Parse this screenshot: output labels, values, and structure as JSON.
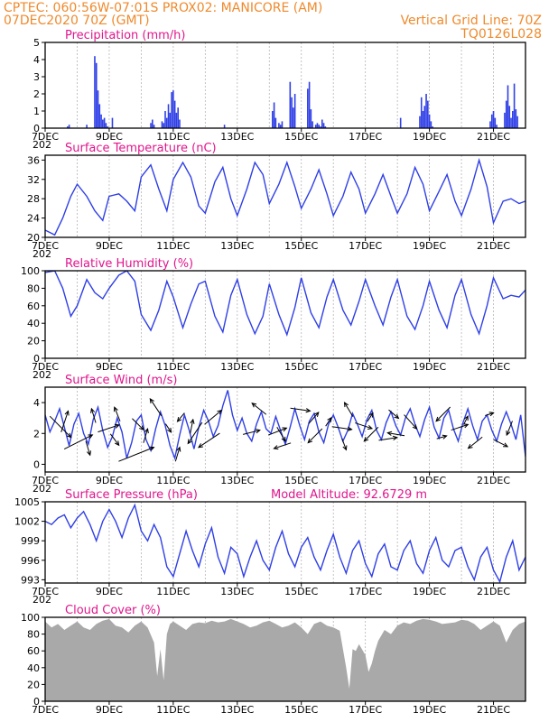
{
  "header": {
    "line1_left": "CPTEC:   060:56W-07:01S   PROX02: MANICORE (AM)",
    "line2_left": "07DEC2020 70Z (GMT)",
    "line2_right": "Vertical Grid Line: 70Z",
    "line3_right": "TQ0126L028"
  },
  "colors": {
    "header": "#ef8a2c",
    "panel_title": "#e0168c",
    "series": "#2f3fe6",
    "cloud": "#a9a9a9"
  },
  "x_axis": {
    "labels": [
      "7DEC",
      "9DEC",
      "11DEC",
      "13DEC",
      "15DEC",
      "17DEC",
      "19DEC",
      "21DEC"
    ],
    "start_day": 7,
    "end_day": 22,
    "label_step_days": 2,
    "year_fragment": "202"
  },
  "chart_data": [
    {
      "id": "precip",
      "type": "bar",
      "title": "Precipitation (mm/h)",
      "ylim": [
        0,
        5
      ],
      "yticks": [
        0,
        1,
        2,
        3,
        4,
        5
      ],
      "grid": true,
      "color": "#2f3fe6",
      "x": [
        7.7,
        7.75,
        8.3,
        8.55,
        8.6,
        8.65,
        8.7,
        8.75,
        8.8,
        8.85,
        8.9,
        8.95,
        9.1,
        10.3,
        10.35,
        10.4,
        10.65,
        10.7,
        10.75,
        10.8,
        10.85,
        10.9,
        10.95,
        11.0,
        11.05,
        11.1,
        11.15,
        11.2,
        12.6,
        14.1,
        14.15,
        14.2,
        14.3,
        14.35,
        14.4,
        14.65,
        14.7,
        14.75,
        14.8,
        15.2,
        15.25,
        15.3,
        15.35,
        15.45,
        15.5,
        15.55,
        15.6,
        15.65,
        15.7,
        15.75,
        18.1,
        18.7,
        18.75,
        18.8,
        18.85,
        18.9,
        18.95,
        19.0,
        19.05,
        19.1,
        20.9,
        20.95,
        21.0,
        21.05,
        21.1,
        21.35,
        21.4,
        21.45,
        21.5,
        21.55,
        21.6,
        21.65,
        21.7,
        21.75
      ],
      "values": [
        0.1,
        0.2,
        0.2,
        4.2,
        3.8,
        2.2,
        1.4,
        0.8,
        0.5,
        0.6,
        0.3,
        0.1,
        0.6,
        0.3,
        0.5,
        0.2,
        0.4,
        0.3,
        1.0,
        0.6,
        1.4,
        0.9,
        2.1,
        2.2,
        1.6,
        0.9,
        1.2,
        0.5,
        0.2,
        1.0,
        1.5,
        0.6,
        0.3,
        0.2,
        0.4,
        2.7,
        1.8,
        1.2,
        2.0,
        2.3,
        2.7,
        1.1,
        0.4,
        0.2,
        0.3,
        0.2,
        0.1,
        0.5,
        0.3,
        0.1,
        0.6,
        0.7,
        1.8,
        1.0,
        1.3,
        2.0,
        1.6,
        0.8,
        0.4,
        0.1,
        0.4,
        0.8,
        1.0,
        0.6,
        0.2,
        0.9,
        1.6,
        2.5,
        1.3,
        0.6,
        1.0,
        2.6,
        1.1,
        0.7
      ]
    },
    {
      "id": "temp",
      "type": "line",
      "title": "Surface Temperature (nC)",
      "ylim": [
        20,
        37
      ],
      "yticks": [
        20,
        24,
        28,
        32,
        36
      ],
      "grid": true,
      "color": "#2f3fe6",
      "x": [
        7.0,
        7.3,
        7.55,
        7.8,
        8.0,
        8.3,
        8.55,
        8.8,
        9.0,
        9.3,
        9.55,
        9.8,
        10.0,
        10.3,
        10.55,
        10.8,
        11.0,
        11.3,
        11.55,
        11.8,
        12.0,
        12.3,
        12.55,
        12.8,
        13.0,
        13.3,
        13.55,
        13.8,
        14.0,
        14.3,
        14.55,
        14.8,
        15.0,
        15.3,
        15.55,
        15.8,
        16.0,
        16.3,
        16.55,
        16.8,
        17.0,
        17.3,
        17.55,
        17.8,
        18.0,
        18.3,
        18.55,
        18.8,
        19.0,
        19.3,
        19.55,
        19.8,
        20.0,
        20.3,
        20.55,
        20.8,
        21.0,
        21.3,
        21.55,
        21.8,
        22.0
      ],
      "values": [
        21.5,
        20.5,
        24.0,
        28.5,
        31.0,
        28.5,
        25.5,
        23.5,
        28.5,
        29.0,
        27.5,
        25.5,
        32.5,
        35.0,
        30.0,
        25.5,
        32.0,
        35.5,
        32.5,
        26.5,
        25.0,
        31.5,
        34.5,
        28.0,
        24.5,
        30.0,
        35.5,
        33.0,
        27.0,
        31.0,
        35.5,
        30.5,
        26.0,
        30.0,
        34.0,
        29.0,
        24.5,
        28.5,
        33.5,
        30.0,
        25.0,
        29.0,
        33.0,
        28.5,
        25.0,
        29.0,
        34.5,
        31.0,
        25.5,
        29.5,
        33.0,
        27.5,
        24.5,
        30.0,
        36.0,
        30.5,
        23.0,
        27.5,
        28.0,
        27.0,
        27.5
      ]
    },
    {
      "id": "rh",
      "type": "line",
      "title": "Relative Humidity (%)",
      "ylim": [
        0,
        100
      ],
      "yticks": [
        0,
        20,
        40,
        60,
        80,
        100
      ],
      "grid": true,
      "color": "#2f3fe6",
      "x": [
        7.0,
        7.3,
        7.55,
        7.8,
        8.0,
        8.3,
        8.55,
        8.8,
        9.0,
        9.3,
        9.55,
        9.8,
        10.0,
        10.3,
        10.55,
        10.8,
        11.0,
        11.3,
        11.55,
        11.8,
        12.0,
        12.3,
        12.55,
        12.8,
        13.0,
        13.3,
        13.55,
        13.8,
        14.0,
        14.3,
        14.55,
        14.8,
        15.0,
        15.3,
        15.55,
        15.8,
        16.0,
        16.3,
        16.55,
        16.8,
        17.0,
        17.3,
        17.55,
        17.8,
        18.0,
        18.3,
        18.55,
        18.8,
        19.0,
        19.3,
        19.55,
        19.8,
        20.0,
        20.3,
        20.55,
        20.8,
        21.0,
        21.3,
        21.55,
        21.8,
        22.0
      ],
      "values": [
        98,
        100,
        80,
        48,
        60,
        90,
        75,
        68,
        80,
        95,
        100,
        88,
        50,
        32,
        55,
        88,
        70,
        35,
        62,
        85,
        88,
        48,
        30,
        72,
        90,
        50,
        28,
        48,
        85,
        50,
        27,
        58,
        92,
        52,
        35,
        70,
        90,
        55,
        38,
        65,
        90,
        60,
        38,
        70,
        90,
        48,
        33,
        60,
        88,
        55,
        35,
        72,
        90,
        50,
        28,
        60,
        92,
        68,
        72,
        70,
        78
      ]
    },
    {
      "id": "wind",
      "type": "line",
      "title": "Surface Wind (m/s)",
      "ylim": [
        -0.5,
        5
      ],
      "yticks": [
        0,
        2,
        4
      ],
      "grid": true,
      "color": "#2f3fe6",
      "x": [
        7.0,
        7.15,
        7.3,
        7.45,
        7.6,
        7.75,
        7.9,
        8.05,
        8.2,
        8.35,
        8.5,
        8.65,
        8.8,
        8.95,
        9.1,
        9.25,
        9.4,
        9.55,
        9.7,
        9.85,
        10.0,
        10.15,
        10.3,
        10.45,
        10.6,
        10.75,
        10.9,
        11.05,
        11.2,
        11.35,
        11.5,
        11.65,
        11.8,
        11.95,
        12.1,
        12.25,
        12.4,
        12.55,
        12.7,
        12.85,
        13.0,
        13.15,
        13.3,
        13.45,
        13.6,
        13.75,
        13.9,
        14.05,
        14.2,
        14.35,
        14.5,
        14.65,
        14.8,
        14.95,
        15.1,
        15.25,
        15.4,
        15.55,
        15.7,
        15.85,
        16.0,
        16.15,
        16.3,
        16.45,
        16.6,
        16.75,
        16.9,
        17.05,
        17.2,
        17.35,
        17.5,
        17.65,
        17.8,
        17.95,
        18.1,
        18.25,
        18.4,
        18.55,
        18.7,
        18.85,
        19.0,
        19.15,
        19.3,
        19.45,
        19.6,
        19.75,
        19.9,
        20.05,
        20.2,
        20.35,
        20.5,
        20.65,
        20.8,
        20.95,
        21.1,
        21.25,
        21.4,
        21.55,
        21.7,
        21.85,
        22.0
      ],
      "values": [
        3.2,
        2.1,
        2.8,
        3.6,
        2.4,
        1.2,
        2.6,
        3.3,
        2.0,
        1.3,
        2.9,
        3.7,
        2.2,
        1.1,
        1.8,
        3.0,
        2.1,
        0.4,
        1.4,
        2.8,
        3.2,
        1.6,
        0.9,
        2.3,
        3.4,
        2.5,
        1.2,
        0.4,
        1.9,
        3.2,
        2.2,
        1.0,
        2.4,
        3.5,
        2.8,
        1.8,
        2.5,
        3.8,
        4.8,
        3.2,
        2.2,
        3.0,
        2.0,
        1.5,
        2.6,
        3.4,
        2.3,
        2.0,
        3.1,
        2.2,
        1.3,
        2.4,
        3.6,
        2.5,
        1.6,
        2.8,
        3.3,
        2.1,
        1.4,
        2.6,
        3.2,
        2.4,
        1.5,
        2.2,
        3.3,
        2.6,
        1.8,
        2.9,
        3.5,
        2.2,
        1.6,
        2.7,
        3.4,
        2.5,
        1.9,
        3.0,
        3.6,
        2.6,
        1.8,
        2.9,
        3.7,
        2.4,
        1.7,
        3.0,
        3.5,
        2.3,
        1.5,
        2.7,
        3.6,
        2.5,
        1.6,
        2.8,
        3.2,
        2.2,
        1.5,
        2.6,
        3.4,
        2.6,
        1.6,
        3.2,
        0.5
      ]
    },
    {
      "id": "pressure",
      "type": "line",
      "title": "Surface Pressure (hPa)",
      "annotation": "Model Altitude: 92.6729 m",
      "ylim": [
        992.5,
        1005
      ],
      "yticks": [
        993,
        996,
        999,
        1002,
        1005
      ],
      "grid": true,
      "color": "#2f3fe6",
      "x": [
        7.0,
        7.2,
        7.4,
        7.6,
        7.8,
        8.0,
        8.2,
        8.4,
        8.6,
        8.8,
        9.0,
        9.2,
        9.4,
        9.6,
        9.8,
        10.0,
        10.2,
        10.4,
        10.6,
        10.8,
        11.0,
        11.2,
        11.4,
        11.6,
        11.8,
        12.0,
        12.2,
        12.4,
        12.6,
        12.8,
        13.0,
        13.2,
        13.4,
        13.6,
        13.8,
        14.0,
        14.2,
        14.4,
        14.6,
        14.8,
        15.0,
        15.2,
        15.4,
        15.6,
        15.8,
        16.0,
        16.2,
        16.4,
        16.6,
        16.8,
        17.0,
        17.2,
        17.4,
        17.6,
        17.8,
        18.0,
        18.2,
        18.4,
        18.6,
        18.8,
        19.0,
        19.2,
        19.4,
        19.6,
        19.8,
        20.0,
        20.2,
        20.4,
        20.6,
        20.8,
        21.0,
        21.2,
        21.4,
        21.6,
        21.8,
        22.0
      ],
      "values": [
        1002.0,
        1001.5,
        1002.5,
        1003.0,
        1001.0,
        1002.5,
        1003.5,
        1001.5,
        999.0,
        1002.0,
        1003.8,
        1002.0,
        999.5,
        1002.5,
        1004.5,
        1000.5,
        999.0,
        1001.5,
        999.5,
        995.0,
        993.5,
        997.0,
        1000.5,
        997.5,
        995.0,
        998.5,
        1001.0,
        996.5,
        994.0,
        998.0,
        997.0,
        993.5,
        996.5,
        999.0,
        996.0,
        994.5,
        998.0,
        1000.5,
        997.0,
        995.0,
        998.0,
        999.5,
        996.5,
        994.5,
        997.5,
        1000.0,
        996.5,
        994.0,
        997.5,
        999.0,
        995.5,
        993.5,
        997.0,
        998.5,
        995.0,
        994.5,
        997.5,
        999.0,
        995.5,
        994.0,
        997.5,
        999.5,
        996.0,
        995.0,
        997.5,
        998.0,
        995.0,
        993.0,
        996.5,
        998.0,
        994.5,
        992.7,
        996.5,
        999.0,
        994.5,
        996.5
      ]
    },
    {
      "id": "cloud",
      "type": "area",
      "title": "Cloud Cover (%)",
      "ylim": [
        0,
        100
      ],
      "yticks": [
        0,
        20,
        40,
        60,
        80,
        100
      ],
      "grid": true,
      "color": "#a9a9a9",
      "x": [
        7.0,
        7.2,
        7.4,
        7.6,
        7.8,
        8.0,
        8.2,
        8.4,
        8.6,
        8.8,
        9.0,
        9.2,
        9.4,
        9.6,
        9.8,
        10.0,
        10.2,
        10.4,
        10.5,
        10.6,
        10.7,
        10.8,
        10.9,
        11.0,
        11.2,
        11.4,
        11.6,
        11.8,
        12.0,
        12.2,
        12.4,
        12.6,
        12.8,
        13.0,
        13.2,
        13.4,
        13.6,
        13.8,
        14.0,
        14.2,
        14.4,
        14.6,
        14.8,
        15.0,
        15.2,
        15.4,
        15.6,
        15.8,
        16.0,
        16.2,
        16.4,
        16.5,
        16.6,
        16.7,
        16.8,
        17.0,
        17.1,
        17.2,
        17.3,
        17.4,
        17.6,
        17.8,
        18.0,
        18.2,
        18.4,
        18.6,
        18.8,
        19.0,
        19.2,
        19.4,
        19.6,
        19.8,
        20.0,
        20.2,
        20.4,
        20.6,
        20.8,
        21.0,
        21.2,
        21.4,
        21.6,
        21.8,
        22.0
      ],
      "values": [
        95,
        88,
        92,
        85,
        90,
        95,
        88,
        85,
        92,
        96,
        98,
        90,
        88,
        82,
        90,
        95,
        88,
        70,
        30,
        62,
        25,
        80,
        92,
        95,
        90,
        85,
        92,
        94,
        93,
        96,
        94,
        95,
        98,
        95,
        92,
        88,
        90,
        94,
        96,
        92,
        88,
        90,
        94,
        88,
        80,
        92,
        95,
        90,
        88,
        84,
        40,
        15,
        62,
        60,
        68,
        55,
        35,
        45,
        60,
        72,
        85,
        80,
        90,
        94,
        92,
        96,
        98,
        97,
        95,
        92,
        93,
        94,
        97,
        96,
        92,
        85,
        90,
        95,
        90,
        70,
        85,
        92,
        95
      ]
    }
  ],
  "wind_arrows": {
    "x": [
      7.3,
      7.55,
      7.8,
      8.3,
      8.55,
      8.8,
      9.1,
      9.3,
      9.55,
      9.8,
      10.1,
      10.55,
      10.8,
      11.1,
      11.3,
      11.55,
      11.8,
      12.1,
      12.3,
      13.3,
      13.8,
      14.1,
      14.3,
      14.55,
      14.8,
      15.3,
      15.55,
      15.8,
      16.1,
      16.3,
      16.55,
      16.8,
      17.1,
      17.3,
      17.55,
      17.8,
      18.1,
      18.3,
      19.3,
      19.55,
      19.8,
      20.1,
      20.55,
      20.8,
      21.1,
      21.55
    ],
    "u": [
      1.5,
      0.5,
      2.0,
      0.3,
      -0.3,
      1.5,
      0.6,
      -0.4,
      2.5,
      0.8,
      0.3,
      -0.8,
      0.4,
      0.3,
      -0.5,
      0.2,
      -1.0,
      1.2,
      -1.5,
      1.2,
      -1.0,
      1.3,
      0.6,
      -1.2,
      1.4,
      0.7,
      -1.0,
      0.4,
      1.4,
      0.3,
      -0.6,
      1.2,
      0.4,
      -1.0,
      1.3,
      0.7,
      -1.2,
      0.9,
      0.7,
      -1.0,
      1.2,
      0.3,
      -1.0,
      0.6,
      1.0,
      -0.4
    ],
    "v": [
      -1.5,
      1.5,
      1.0,
      -1.0,
      1.0,
      0.5,
      -0.8,
      1.0,
      1.0,
      -0.8,
      1.0,
      1.2,
      -0.6,
      1.0,
      -0.6,
      1.0,
      -1.5,
      1.0,
      -1.0,
      0.3,
      0.8,
      0.5,
      -1.0,
      -0.4,
      -0.2,
      0.8,
      -1.0,
      0.6,
      -0.2,
      -0.8,
      1.0,
      -0.4,
      0.6,
      -1.0,
      0.2,
      -0.6,
      0.2,
      -1.0,
      0.2,
      -1.0,
      0.4,
      0.6,
      -0.8,
      0.2,
      -0.5,
      -1.0
    ]
  }
}
